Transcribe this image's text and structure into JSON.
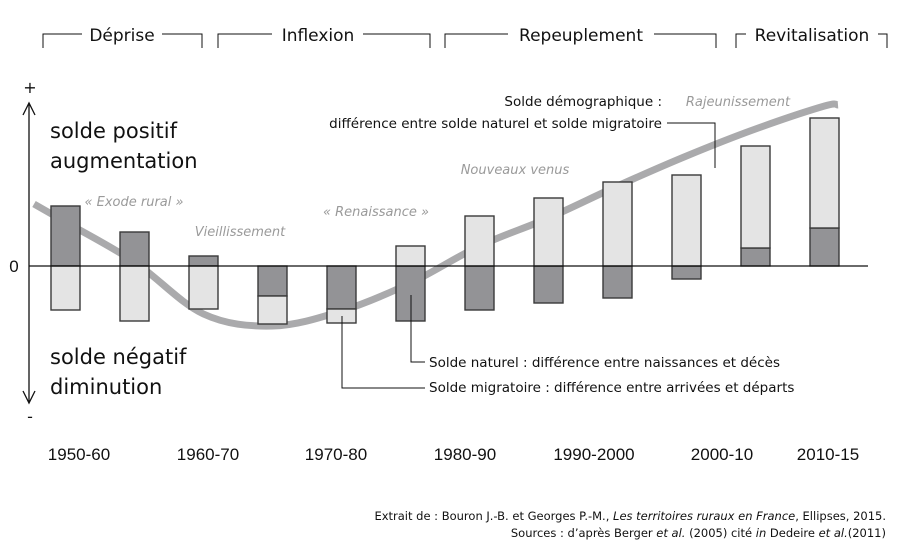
{
  "chart_data": {
    "type": "bar",
    "title": "",
    "xlabel": "",
    "ylabel": "",
    "y_axis": {
      "top_symbol": "+",
      "bottom_symbol": "-",
      "zero_label": "0",
      "positive_label": [
        "solde positif",
        "augmentation"
      ],
      "negative_label": [
        "solde négatif",
        "diminution"
      ]
    },
    "ylim": [
      -6,
      16
    ],
    "units": "relative (unitless, schematic)",
    "categories": [
      "1950-60",
      "1960-70",
      "1970-80",
      "1980-90",
      "1990-2000",
      "2000-10",
      "2010-15"
    ],
    "bar_periods": [
      "p1",
      "p2",
      "p3",
      "p4",
      "p5",
      "p6",
      "p7",
      "p8",
      "p9",
      "p10",
      "p11",
      "p12"
    ],
    "series": [
      {
        "name": "Solde naturel",
        "color": "#939396",
        "values": [
          6.0,
          3.4,
          1.0,
          -3.0,
          -4.3,
          -5.5,
          -4.4,
          -3.7,
          -3.2,
          -1.3,
          1.8,
          3.8
        ]
      },
      {
        "name": "Solde migratoire",
        "color": "#e4e4e4",
        "values": [
          -4.4,
          -5.5,
          -4.3,
          -2.8,
          -1.4,
          2.0,
          5.0,
          6.8,
          8.4,
          9.1,
          10.2,
          11.0
        ]
      }
    ],
    "trend_curve": {
      "name": "Solde démographique",
      "color": "#aaaaac",
      "values": [
        4.4,
        0.4,
        -4.8,
        -6.0,
        -4.5,
        -1.7,
        2.0,
        4.8,
        8.0,
        11.0,
        13.7,
        16.0
      ]
    },
    "phases": [
      {
        "label": "Déprise"
      },
      {
        "label": "Inflexion"
      },
      {
        "label": "Repeuplement"
      },
      {
        "label": "Revitalisation"
      }
    ],
    "annotations": [
      {
        "text": "« Exode rural »"
      },
      {
        "text": "Vieillissement"
      },
      {
        "text": "« Renaissance »"
      },
      {
        "text": "Nouveaux venus"
      },
      {
        "text": "Rajeunissement"
      }
    ],
    "legend": {
      "demographique": [
        "Solde démographique :",
        "différence entre solde naturel et solde migratoire"
      ],
      "naturel": "Solde naturel : différence entre naissances et décès",
      "migratoire": "Solde migratoire : différence entre arrivées et départs"
    }
  },
  "source": {
    "line1_prefix": "Extrait de : Bouron J.-B. et Georges P.-M., ",
    "line1_title": "Les territoires ruraux en France",
    "line1_suffix": ", Ellipses, 2015.",
    "line2_a": "Sources : d’après Berger ",
    "line2_etal1": "et al.",
    "line2_b": " (2005) cité ",
    "line2_in": "in",
    "line2_c": " Dedeire ",
    "line2_etal2": "et al.",
    "line2_d": "(2011)"
  }
}
